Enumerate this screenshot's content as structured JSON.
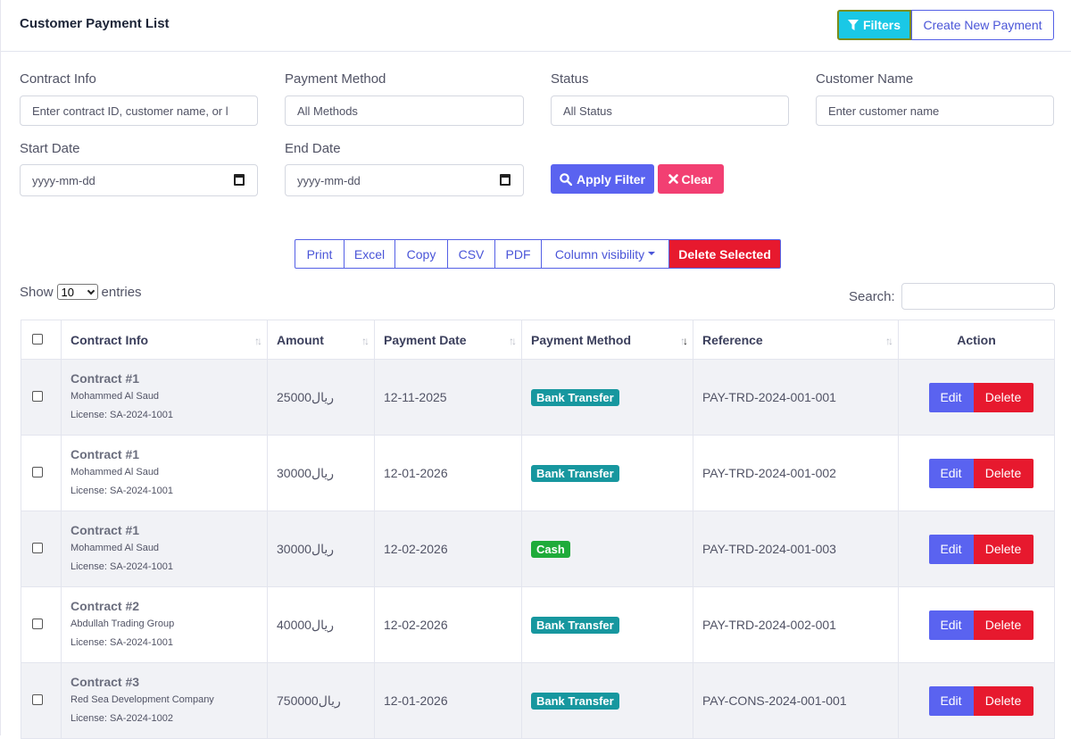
{
  "header": {
    "title": "Customer Payment List",
    "filters_label": "Filters",
    "create_label": "Create New Payment"
  },
  "filters": {
    "contract_info_label": "Contract Info",
    "contract_info_placeholder": "Enter contract ID, customer name, or l",
    "payment_method_label": "Payment Method",
    "payment_method_value": "All Methods",
    "status_label": "Status",
    "status_value": "All Status",
    "customer_name_label": "Customer Name",
    "customer_name_placeholder": "Enter customer name",
    "start_date_label": "Start Date",
    "start_date_placeholder": "yyyy-mm-dd",
    "end_date_label": "End Date",
    "end_date_placeholder": "yyyy-mm-dd",
    "apply_label": "Apply Filter",
    "clear_label": "Clear"
  },
  "export_buttons": [
    "Print",
    "Excel",
    "Copy",
    "CSV",
    "PDF",
    "Column visibility",
    "Delete Selected"
  ],
  "table_controls": {
    "show_label": "Show",
    "entries_value": "10",
    "entries_label": "entries",
    "search_label": "Search:"
  },
  "table": {
    "columns": [
      "Contract Info",
      "Amount",
      "Payment Date",
      "Payment Method",
      "Reference",
      "Action"
    ],
    "rows": [
      {
        "contract": "Contract #1",
        "customer": "Mohammed Al Saud",
        "license": "License: SA-2024-1001",
        "amount": "25000ريال",
        "date": "12-11-2025",
        "method": "Bank Transfer",
        "method_color": "#17979f",
        "reference": "PAY-TRD-2024-001-001"
      },
      {
        "contract": "Contract #1",
        "customer": "Mohammed Al Saud",
        "license": "License: SA-2024-1001",
        "amount": "30000ريال",
        "date": "12-01-2026",
        "method": "Bank Transfer",
        "method_color": "#17979f",
        "reference": "PAY-TRD-2024-001-002"
      },
      {
        "contract": "Contract #1",
        "customer": "Mohammed Al Saud",
        "license": "License: SA-2024-1001",
        "amount": "30000ريال",
        "date": "12-02-2026",
        "method": "Cash",
        "method_color": "#1fab3a",
        "reference": "PAY-TRD-2024-001-003"
      },
      {
        "contract": "Contract #2",
        "customer": "Abdullah Trading Group",
        "license": "License: SA-2024-1001",
        "amount": "40000ريال",
        "date": "12-02-2026",
        "method": "Bank Transfer",
        "method_color": "#17979f",
        "reference": "PAY-TRD-2024-002-001"
      },
      {
        "contract": "Contract #3",
        "customer": "Red Sea Development Company",
        "license": "License: SA-2024-1002",
        "amount": "750000ريال",
        "date": "12-01-2026",
        "method": "Bank Transfer",
        "method_color": "#17979f",
        "reference": "PAY-CONS-2024-001-001"
      }
    ],
    "edit_label": "Edit",
    "delete_label": "Delete"
  }
}
